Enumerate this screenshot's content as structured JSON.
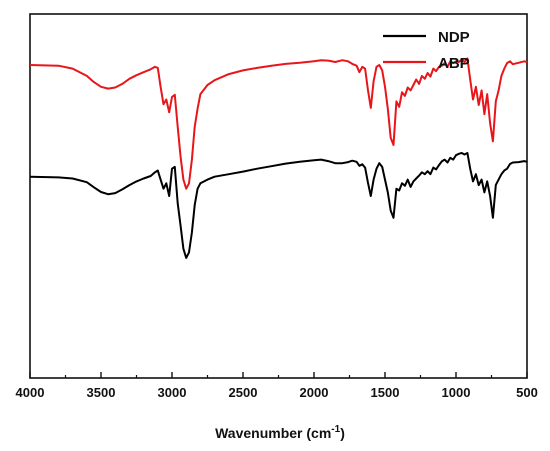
{
  "chart_data": {
    "type": "line",
    "title": "",
    "xlabel": "Wavenumber (cm",
    "xlabel_sup": "-1",
    "xlabel_close": ")",
    "ylabel": "",
    "xlim": [
      4000,
      500
    ],
    "x_reversed": true,
    "ylim": [
      0,
      1
    ],
    "x_ticks": [
      4000,
      3500,
      3000,
      2500,
      2000,
      1500,
      1000,
      500
    ],
    "x_tick_labels": [
      "4000",
      "3500",
      "3000",
      "2500",
      "2000",
      "1500",
      "1000",
      "500"
    ],
    "grid": false,
    "legend_position": "top-right",
    "series": [
      {
        "name": "NDP",
        "color": "#000000",
        "x": [
          4000,
          3800,
          3700,
          3600,
          3550,
          3500,
          3450,
          3400,
          3350,
          3300,
          3250,
          3200,
          3150,
          3120,
          3100,
          3080,
          3060,
          3040,
          3020,
          3000,
          2980,
          2960,
          2940,
          2920,
          2900,
          2880,
          2860,
          2840,
          2820,
          2800,
          2750,
          2700,
          2600,
          2500,
          2400,
          2300,
          2200,
          2100,
          2000,
          1950,
          1900,
          1850,
          1800,
          1760,
          1730,
          1700,
          1680,
          1660,
          1640,
          1620,
          1600,
          1580,
          1560,
          1540,
          1520,
          1500,
          1480,
          1460,
          1440,
          1420,
          1400,
          1380,
          1360,
          1340,
          1320,
          1300,
          1280,
          1260,
          1240,
          1220,
          1200,
          1180,
          1160,
          1140,
          1120,
          1100,
          1080,
          1060,
          1040,
          1020,
          1000,
          980,
          960,
          940,
          920,
          900,
          880,
          860,
          840,
          820,
          800,
          780,
          760,
          740,
          720,
          700,
          680,
          660,
          640,
          620,
          600,
          560,
          520,
          500
        ],
        "y": [
          0.553,
          0.551,
          0.548,
          0.538,
          0.524,
          0.511,
          0.505,
          0.508,
          0.518,
          0.53,
          0.54,
          0.548,
          0.555,
          0.565,
          0.57,
          0.545,
          0.52,
          0.535,
          0.5,
          0.575,
          0.58,
          0.48,
          0.42,
          0.355,
          0.33,
          0.345,
          0.4,
          0.475,
          0.52,
          0.535,
          0.545,
          0.553,
          0.56,
          0.567,
          0.575,
          0.582,
          0.589,
          0.594,
          0.598,
          0.6,
          0.596,
          0.59,
          0.59,
          0.593,
          0.597,
          0.594,
          0.583,
          0.587,
          0.578,
          0.536,
          0.5,
          0.545,
          0.575,
          0.59,
          0.58,
          0.545,
          0.51,
          0.46,
          0.44,
          0.52,
          0.515,
          0.535,
          0.528,
          0.545,
          0.525,
          0.54,
          0.548,
          0.556,
          0.565,
          0.56,
          0.568,
          0.56,
          0.578,
          0.573,
          0.585,
          0.595,
          0.6,
          0.592,
          0.605,
          0.6,
          0.612,
          0.616,
          0.618,
          0.614,
          0.618,
          0.575,
          0.54,
          0.56,
          0.53,
          0.545,
          0.51,
          0.54,
          0.5,
          0.44,
          0.53,
          0.545,
          0.56,
          0.57,
          0.575,
          0.588,
          0.592,
          0.593,
          0.596,
          0.594
        ]
      },
      {
        "name": "ABP",
        "color": "#e8161a",
        "x": [
          4000,
          3800,
          3700,
          3600,
          3550,
          3500,
          3450,
          3400,
          3350,
          3300,
          3250,
          3200,
          3150,
          3120,
          3100,
          3080,
          3060,
          3040,
          3020,
          3000,
          2980,
          2960,
          2940,
          2920,
          2900,
          2880,
          2860,
          2840,
          2820,
          2800,
          2750,
          2700,
          2600,
          2500,
          2400,
          2300,
          2200,
          2100,
          2000,
          1950,
          1900,
          1850,
          1800,
          1760,
          1730,
          1700,
          1680,
          1660,
          1640,
          1620,
          1600,
          1580,
          1560,
          1540,
          1520,
          1500,
          1480,
          1460,
          1440,
          1420,
          1400,
          1380,
          1360,
          1340,
          1320,
          1300,
          1280,
          1260,
          1240,
          1220,
          1200,
          1180,
          1160,
          1140,
          1120,
          1100,
          1080,
          1060,
          1040,
          1020,
          1000,
          980,
          960,
          940,
          920,
          900,
          880,
          860,
          840,
          820,
          800,
          780,
          760,
          740,
          720,
          700,
          680,
          660,
          640,
          620,
          600,
          560,
          520,
          500
        ],
        "y": [
          0.86,
          0.858,
          0.85,
          0.83,
          0.813,
          0.8,
          0.795,
          0.798,
          0.808,
          0.822,
          0.832,
          0.84,
          0.848,
          0.855,
          0.852,
          0.8,
          0.752,
          0.765,
          0.73,
          0.772,
          0.778,
          0.69,
          0.61,
          0.545,
          0.52,
          0.535,
          0.6,
          0.69,
          0.74,
          0.78,
          0.805,
          0.818,
          0.835,
          0.845,
          0.852,
          0.858,
          0.863,
          0.866,
          0.87,
          0.873,
          0.872,
          0.868,
          0.873,
          0.87,
          0.863,
          0.858,
          0.84,
          0.855,
          0.85,
          0.79,
          0.742,
          0.815,
          0.855,
          0.86,
          0.845,
          0.8,
          0.74,
          0.66,
          0.64,
          0.76,
          0.745,
          0.785,
          0.775,
          0.798,
          0.79,
          0.805,
          0.82,
          0.808,
          0.83,
          0.822,
          0.838,
          0.828,
          0.85,
          0.843,
          0.855,
          0.858,
          0.865,
          0.855,
          0.87,
          0.865,
          0.87,
          0.868,
          0.875,
          0.868,
          0.878,
          0.82,
          0.765,
          0.8,
          0.75,
          0.79,
          0.725,
          0.78,
          0.7,
          0.65,
          0.76,
          0.79,
          0.83,
          0.85,
          0.865,
          0.87,
          0.862,
          0.866,
          0.87,
          0.868
        ]
      }
    ]
  }
}
